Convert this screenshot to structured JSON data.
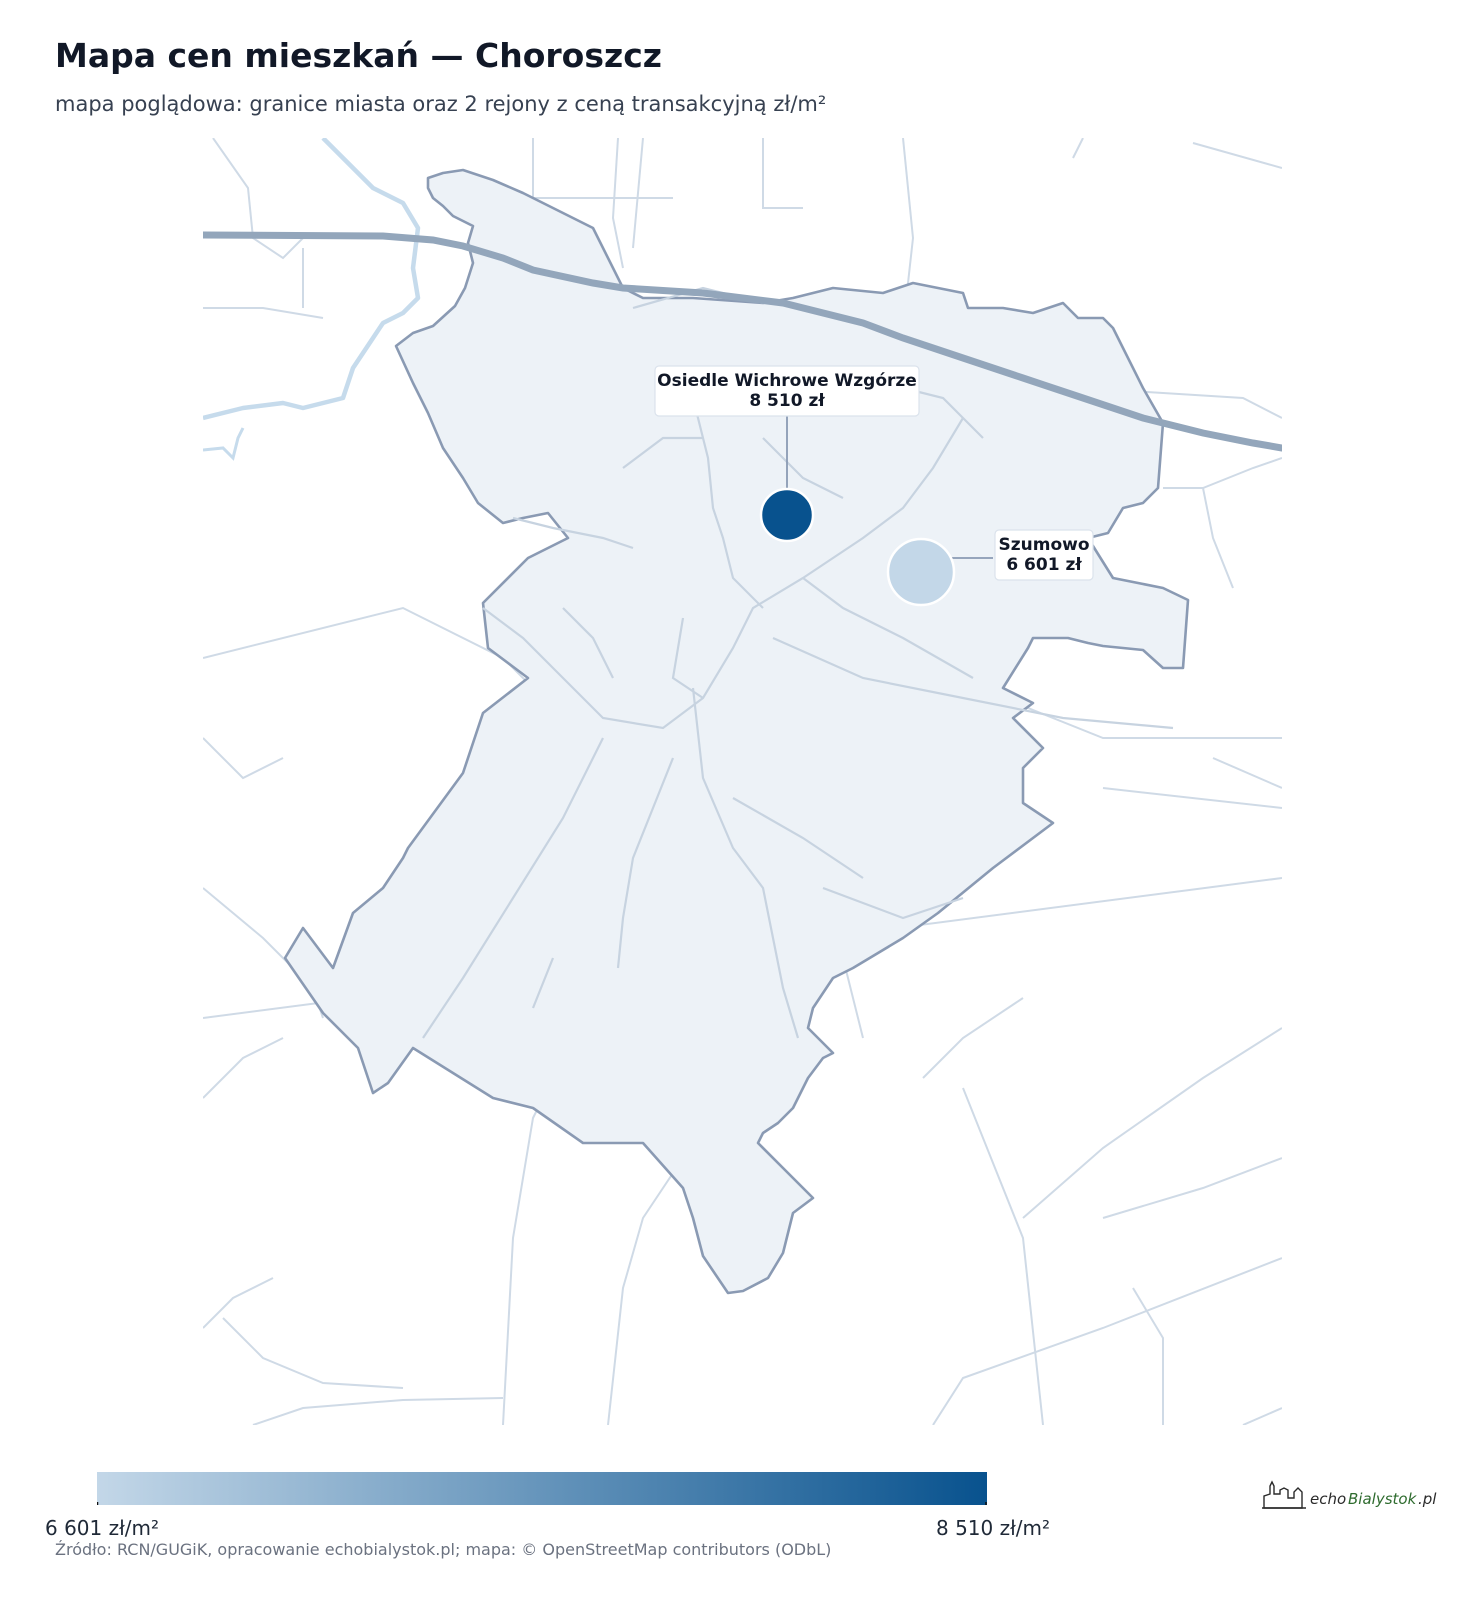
{
  "title": "Mapa cen mieszkań — Choroszcz",
  "subtitle": "mapa poglądowa: granice miasta oraz 2 rejony z ceną transakcyjną zł/m²",
  "map": {
    "city_boundary_name": "Choroszcz",
    "regions": [
      {
        "name": "Osiedle Wichrowe Wzgórze",
        "price_label": "8 510 zł",
        "price": 8510,
        "color": "#08528e"
      },
      {
        "name": "Szumowo",
        "price_label": "6 601 zł",
        "price": 6601,
        "color": "#c3d7e8"
      }
    ]
  },
  "legend": {
    "min_label": "6 601 zł/m²",
    "max_label": "8 510 zł/m²",
    "min_value": 6601,
    "max_value": 8510,
    "color_min": "#c3d7e8",
    "color_max": "#08528e"
  },
  "source": "Źródło: RCN/GUGiK, opracowanie echobialystok.pl; mapa: © OpenStreetMap contributors (ODbL)",
  "logo": {
    "text_echo": "echo",
    "text_bialystok": "Bialystok",
    "text_pl": ".pl"
  },
  "colors": {
    "boundary": "#8a9ab3",
    "fill": "#edf2f7",
    "roads": "#c7d3e0",
    "rail": "#93a6bb",
    "river": "#c6dbec"
  }
}
